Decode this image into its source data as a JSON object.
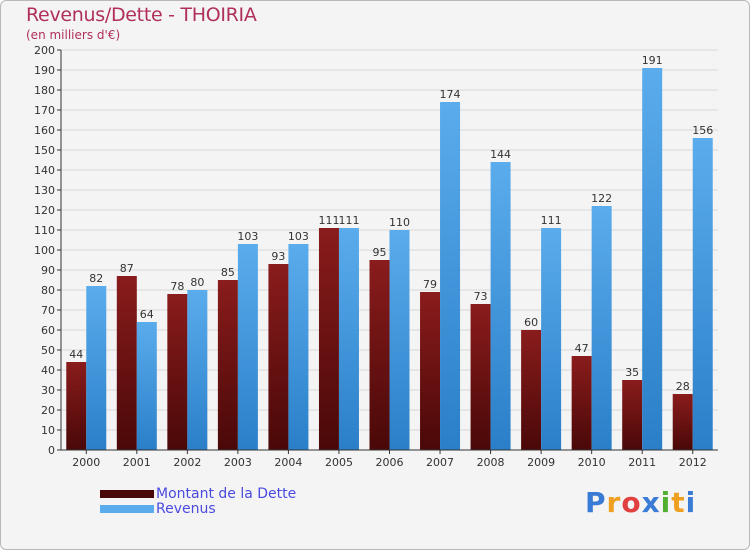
{
  "header": {
    "title": "Revenus/Dette - THOIRIA",
    "subtitle": "(en milliers d'€)"
  },
  "logo": {
    "text": "Proxiti",
    "letters": [
      {
        "ch": "P",
        "color": "#3a7bd5"
      },
      {
        "ch": "r",
        "color": "#f0a020"
      },
      {
        "ch": "o",
        "color": "#e04040"
      },
      {
        "ch": "x",
        "color": "#3a7bd5"
      },
      {
        "ch": "i",
        "color": "#50b030"
      },
      {
        "ch": "t",
        "color": "#f0a020"
      },
      {
        "ch": "i",
        "color": "#3a7bd5"
      }
    ]
  },
  "colors": {
    "dette_top": "#8a1c1c",
    "dette_bottom": "#4a0808",
    "revenus_top": "#5aacec",
    "revenus_bottom": "#2a7fc8",
    "grid": "#d8d8d8",
    "axis": "#333333",
    "legend_text": "#4a4ae0"
  },
  "chart_data": {
    "type": "bar",
    "title": "Revenus/Dette - THOIRIA",
    "subtitle": "(en milliers d'€)",
    "categories": [
      "2000",
      "2001",
      "2002",
      "2003",
      "2004",
      "2005",
      "2006",
      "2007",
      "2008",
      "2009",
      "2010",
      "2011",
      "2012"
    ],
    "series": [
      {
        "name": "Montant de la Dette",
        "values": [
          44,
          87,
          78,
          85,
          93,
          111,
          95,
          79,
          73,
          60,
          47,
          35,
          28
        ]
      },
      {
        "name": "Revenus",
        "values": [
          82,
          64,
          80,
          103,
          103,
          111,
          110,
          174,
          144,
          111,
          122,
          191,
          156
        ]
      }
    ],
    "ylim": [
      0,
      200
    ],
    "ytick_step": 10,
    "grid": true,
    "legend_position": "bottom-left"
  }
}
